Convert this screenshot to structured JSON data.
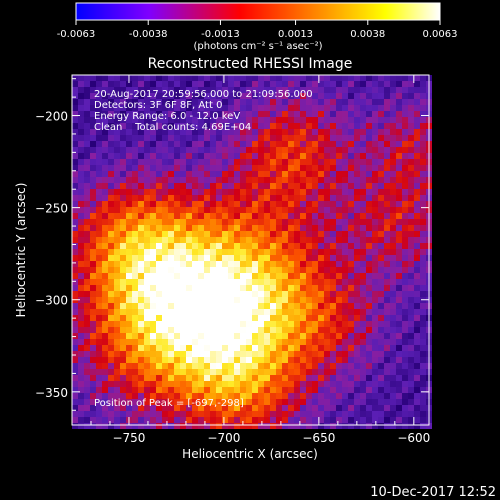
{
  "colorbar": {
    "ticks": [
      "-0.0063",
      "-0.0038",
      "-0.0013",
      "0.0013",
      "0.0038",
      "0.0063"
    ],
    "unit_label": "(photons cm⁻² s⁻¹ asec⁻²)",
    "range": [
      -0.0063,
      0.0063
    ],
    "colormap": [
      "#0000ff",
      "#7f00ff",
      "#ff0000",
      "#ff8000",
      "#ffff00",
      "#ffffff"
    ]
  },
  "chart_data": {
    "type": "heatmap",
    "title": "Reconstructed RHESSI Image",
    "xlabel": "Heliocentric X (arcsec)",
    "ylabel": "Heliocentric Y (arcsec)",
    "xlim": [
      -780,
      -592
    ],
    "ylim": [
      -368,
      -178
    ],
    "xticks": [
      -750,
      -700,
      -650,
      -600
    ],
    "yticks": [
      -350,
      -300,
      -250,
      -200
    ],
    "xtick_labels": [
      "−750",
      "−700",
      "−650",
      "−600"
    ],
    "ytick_labels": [
      "−350",
      "−300",
      "−250",
      "−200"
    ],
    "annotations": [
      "20-Aug-2017 20:59:56.000 to 21:09:56.000",
      "Detectors: 3F 6F 8F, Att 0",
      "Energy Range: 6.0 - 12.0 keV",
      "Clean    Total counts: 4.69E+04"
    ],
    "peak_label": "Position of Peak = [-697,-298]",
    "peak": [
      -697,
      -298
    ],
    "total_counts": 46900,
    "energy_range_kev": [
      6.0,
      12.0
    ]
  },
  "footer": {
    "timestamp": "10-Dec-2017 12:52"
  }
}
